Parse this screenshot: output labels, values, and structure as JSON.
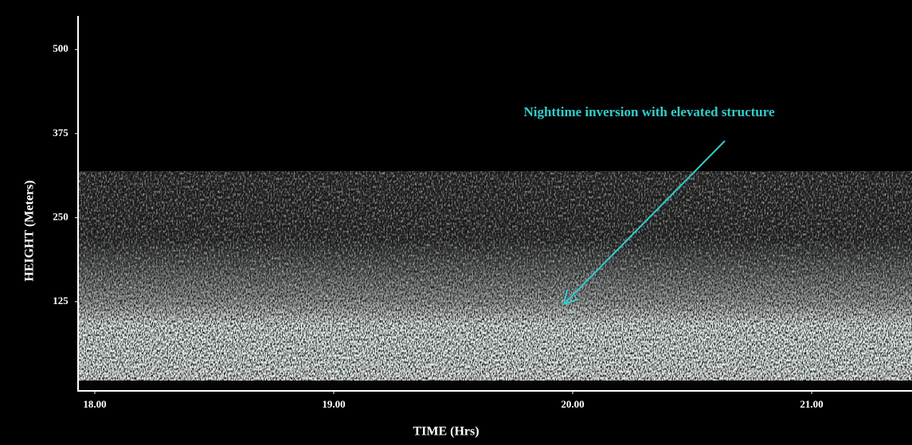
{
  "chart_data": {
    "type": "echogram",
    "annotation": "Nighttime inversion with elevated structure",
    "x_label": "TIME (Hrs)",
    "y_label": "HEIGHT (Meters)",
    "xlim": [
      17.93,
      21.42
    ],
    "xticks": [
      {
        "value": 18,
        "label": "18.00"
      },
      {
        "value": 19,
        "label": "19.00"
      },
      {
        "value": 20,
        "label": "20.00"
      },
      {
        "value": 21,
        "label": "21.00"
      }
    ],
    "ylim": [
      0,
      550
    ],
    "yticks": [
      125,
      250,
      375,
      500
    ]
  }
}
